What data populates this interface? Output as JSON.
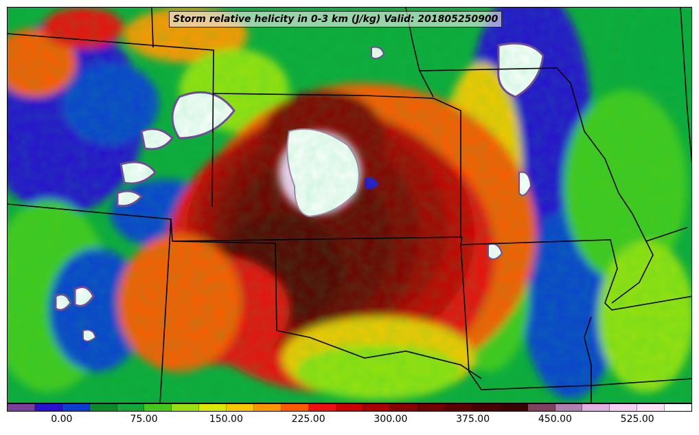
{
  "title": "Storm relative helicity in 0-3 km (J/kg) Valid: 201805250900",
  "colorbar": {
    "colors": [
      "#7b3f9c",
      "#2a10d0",
      "#0a3fd0",
      "#0a8a2a",
      "#10a83a",
      "#46c81a",
      "#98e010",
      "#d8e800",
      "#f5c800",
      "#ff9600",
      "#ff5a00",
      "#ee1010",
      "#c80000",
      "#a80000",
      "#880000",
      "#700000",
      "#5a0000",
      "#4a0000",
      "#3a0000",
      "#804060",
      "#b080b0",
      "#e0b0e0",
      "#f6d0f4",
      "#fbe4fa",
      "#ffffff"
    ],
    "tick_labels": [
      "0.00",
      "75.00",
      "150.00",
      "225.00",
      "300.00",
      "375.00",
      "450.00",
      "525.00"
    ]
  }
}
